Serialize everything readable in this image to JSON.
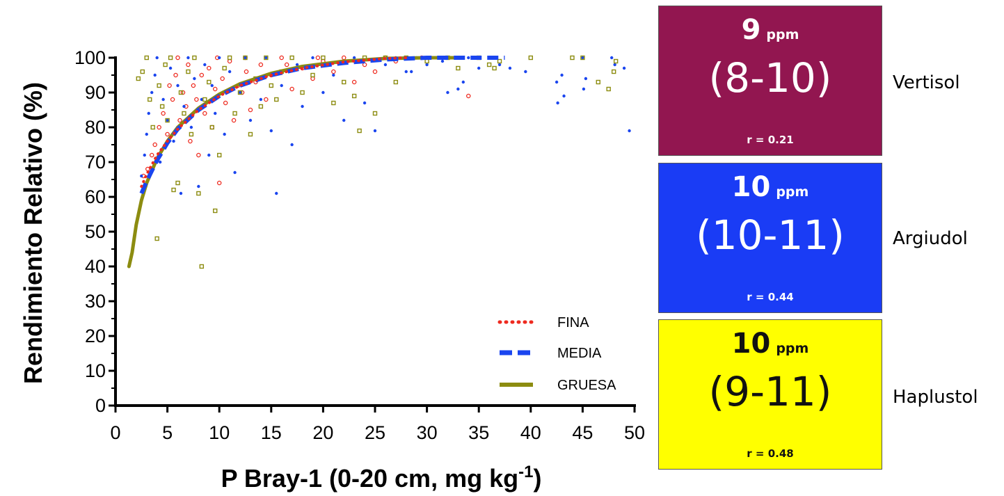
{
  "colors": {
    "fina": "#ee2a1f",
    "media": "#1a45ef",
    "gruesa": "#8c8c10"
  },
  "chart_data": {
    "type": "scatter",
    "title": "",
    "xlabel": "P Bray-1 (0-20 cm, mg kg",
    "xlabel_superscript": "-1",
    "xlabel_suffix": ")",
    "ylabel": "Rendimiento Relativo (%)",
    "xlim": [
      0,
      50
    ],
    "ylim": [
      0,
      100
    ],
    "x_ticks": [
      "0",
      "5",
      "10",
      "15",
      "20",
      "25",
      "30",
      "35",
      "40",
      "45",
      "50"
    ],
    "y_ticks": [
      "0",
      "10",
      "20",
      "30",
      "40",
      "50",
      "60",
      "70",
      "80",
      "90",
      "100"
    ],
    "legend": {
      "placement": "bottom-right",
      "entries": [
        "FINA",
        "MEDIA",
        "GRUESA"
      ]
    },
    "series": [
      {
        "name": "FINA",
        "marker": "open-circle",
        "line_style": "dotted",
        "curve": [
          [
            2.5,
            63
          ],
          [
            3,
            66.5
          ],
          [
            4,
            72
          ],
          [
            5,
            76
          ],
          [
            6,
            79.5
          ],
          [
            8,
            85
          ],
          [
            10,
            89
          ],
          [
            12,
            92
          ],
          [
            15,
            95
          ],
          [
            18,
            97
          ],
          [
            22,
            98.8
          ],
          [
            26,
            99.8
          ],
          [
            28,
            100
          ]
        ],
        "points": [
          [
            2.7,
            66
          ],
          [
            3.1,
            68
          ],
          [
            3.5,
            72
          ],
          [
            3.8,
            75
          ],
          [
            4.2,
            80
          ],
          [
            4.6,
            84
          ],
          [
            5,
            78
          ],
          [
            5.2,
            92
          ],
          [
            5.5,
            88
          ],
          [
            5.8,
            95
          ],
          [
            6,
            100
          ],
          [
            6.2,
            82
          ],
          [
            6.5,
            90
          ],
          [
            6.8,
            86
          ],
          [
            7,
            98
          ],
          [
            7.2,
            76
          ],
          [
            7.5,
            92
          ],
          [
            7.8,
            88
          ],
          [
            8,
            72
          ],
          [
            8.3,
            95
          ],
          [
            8.6,
            84
          ],
          [
            9,
            97
          ],
          [
            9.3,
            80
          ],
          [
            9.6,
            91
          ],
          [
            10,
            64
          ],
          [
            10.3,
            94
          ],
          [
            10.6,
            87
          ],
          [
            11,
            99
          ],
          [
            11.4,
            82
          ],
          [
            11.8,
            92
          ],
          [
            12.2,
            90
          ],
          [
            12.6,
            96
          ],
          [
            13,
            85
          ],
          [
            13.5,
            93
          ],
          [
            14,
            98
          ],
          [
            14.5,
            88
          ],
          [
            15,
            95
          ],
          [
            16,
            100
          ],
          [
            17,
            91
          ],
          [
            18,
            97
          ],
          [
            19,
            94
          ],
          [
            20,
            99
          ],
          [
            21,
            96
          ],
          [
            22,
            100
          ],
          [
            23,
            93
          ],
          [
            24,
            98
          ],
          [
            25,
            96
          ],
          [
            26,
            100
          ],
          [
            27,
            99
          ],
          [
            29.5,
            100
          ],
          [
            34,
            89
          ],
          [
            16.5,
            98
          ],
          [
            19.5,
            100
          ],
          [
            12.5,
            100
          ],
          [
            9.8,
            100
          ]
        ]
      },
      {
        "name": "MEDIA",
        "marker": "dot",
        "line_style": "dashed",
        "curve": [
          [
            2.5,
            61
          ],
          [
            3,
            64.5
          ],
          [
            4,
            70.5
          ],
          [
            5,
            75.5
          ],
          [
            6,
            79.5
          ],
          [
            8,
            85
          ],
          [
            10,
            89
          ],
          [
            12,
            92
          ],
          [
            15,
            95
          ],
          [
            18,
            97
          ],
          [
            22,
            98.5
          ],
          [
            26,
            99.5
          ],
          [
            30,
            100
          ],
          [
            37.5,
            100
          ]
        ],
        "points": [
          [
            2.5,
            66
          ],
          [
            2.8,
            72
          ],
          [
            3,
            78
          ],
          [
            3.2,
            84
          ],
          [
            3.5,
            90
          ],
          [
            3.8,
            95
          ],
          [
            4,
            100
          ],
          [
            4.3,
            70
          ],
          [
            4.6,
            88
          ],
          [
            5,
            82
          ],
          [
            5.3,
            97
          ],
          [
            5.6,
            76
          ],
          [
            6,
            92
          ],
          [
            6.3,
            61
          ],
          [
            6.6,
            86
          ],
          [
            7,
            100
          ],
          [
            7.3,
            80
          ],
          [
            7.6,
            94
          ],
          [
            8,
            63
          ],
          [
            8.3,
            88
          ],
          [
            8.6,
            98
          ],
          [
            9,
            72
          ],
          [
            9.3,
            92
          ],
          [
            9.6,
            84
          ],
          [
            10,
            100
          ],
          [
            10.5,
            78
          ],
          [
            11,
            96
          ],
          [
            11.5,
            67
          ],
          [
            12,
            90
          ],
          [
            12.5,
            100
          ],
          [
            13,
            82
          ],
          [
            13.5,
            94
          ],
          [
            14,
            88
          ],
          [
            14.5,
            100
          ],
          [
            15,
            79
          ],
          [
            15.5,
            61
          ],
          [
            16,
            92
          ],
          [
            17,
            75
          ],
          [
            17.5,
            98
          ],
          [
            18,
            86
          ],
          [
            19,
            100
          ],
          [
            20,
            90
          ],
          [
            21,
            95
          ],
          [
            22,
            82
          ],
          [
            23,
            100
          ],
          [
            24,
            87
          ],
          [
            25,
            79
          ],
          [
            26,
            98
          ],
          [
            27,
            100
          ],
          [
            28,
            96
          ],
          [
            29,
            100
          ],
          [
            30,
            98
          ],
          [
            31,
            100
          ],
          [
            32,
            90
          ],
          [
            33,
            91
          ],
          [
            34,
            100
          ],
          [
            35,
            97
          ],
          [
            36,
            100
          ],
          [
            37,
            98
          ],
          [
            38,
            97
          ],
          [
            39.5,
            96
          ],
          [
            42.5,
            93
          ],
          [
            42.6,
            87
          ],
          [
            43,
            95
          ],
          [
            43.2,
            89
          ],
          [
            45,
            100
          ],
          [
            45.1,
            91
          ],
          [
            45.3,
            94
          ],
          [
            47.8,
            100
          ],
          [
            48.1,
            98
          ],
          [
            49,
            97
          ],
          [
            49.5,
            79
          ],
          [
            33.5,
            93
          ],
          [
            31.5,
            99
          ],
          [
            28.5,
            96
          ]
        ]
      },
      {
        "name": "GRUESA",
        "marker": "open-square",
        "line_style": "solid",
        "curve": [
          [
            1.3,
            40
          ],
          [
            1.6,
            44
          ],
          [
            2,
            52
          ],
          [
            2.5,
            59
          ],
          [
            3,
            64
          ],
          [
            4,
            71
          ],
          [
            5,
            76
          ],
          [
            6,
            80
          ],
          [
            8,
            85.5
          ],
          [
            10,
            89.5
          ],
          [
            12,
            92.5
          ],
          [
            15,
            95.5
          ],
          [
            18,
            97.5
          ],
          [
            22,
            99
          ],
          [
            26,
            99.8
          ],
          [
            30,
            100
          ],
          [
            33,
            100
          ]
        ],
        "points": [
          [
            2.2,
            94
          ],
          [
            2.6,
            96
          ],
          [
            3,
            100
          ],
          [
            3.3,
            88
          ],
          [
            3.6,
            80
          ],
          [
            4,
            48
          ],
          [
            4.2,
            92
          ],
          [
            4.5,
            86
          ],
          [
            4.8,
            98
          ],
          [
            5,
            82
          ],
          [
            5.3,
            100
          ],
          [
            5.6,
            62
          ],
          [
            6,
            64
          ],
          [
            6.3,
            90
          ],
          [
            6.6,
            84
          ],
          [
            7,
            96
          ],
          [
            7.3,
            78
          ],
          [
            7.6,
            100
          ],
          [
            8,
            61
          ],
          [
            8.3,
            40
          ],
          [
            8.6,
            88
          ],
          [
            9,
            93
          ],
          [
            9.3,
            80
          ],
          [
            9.6,
            56
          ],
          [
            10,
            72
          ],
          [
            10.5,
            97
          ],
          [
            11,
            100
          ],
          [
            11.5,
            84
          ],
          [
            12,
            90
          ],
          [
            12.5,
            100
          ],
          [
            13,
            78
          ],
          [
            13.5,
            94
          ],
          [
            14,
            86
          ],
          [
            14.5,
            100
          ],
          [
            15,
            92
          ],
          [
            15.5,
            88
          ],
          [
            16,
            96
          ],
          [
            17,
            100
          ],
          [
            18,
            90
          ],
          [
            19,
            95
          ],
          [
            20,
            100
          ],
          [
            21,
            87
          ],
          [
            22,
            93
          ],
          [
            23,
            89
          ],
          [
            23.5,
            79
          ],
          [
            24,
            100
          ],
          [
            25,
            84
          ],
          [
            26,
            100
          ],
          [
            27,
            93
          ],
          [
            28,
            100
          ],
          [
            30,
            99
          ],
          [
            32,
            100
          ],
          [
            33,
            97
          ],
          [
            35,
            100
          ],
          [
            36,
            98
          ],
          [
            37,
            99
          ],
          [
            40,
            100
          ],
          [
            44,
            100
          ],
          [
            45,
            100
          ],
          [
            46.5,
            93
          ],
          [
            47.5,
            91
          ],
          [
            48,
            96
          ],
          [
            48.2,
            99
          ],
          [
            36.5,
            97
          ]
        ]
      }
    ]
  },
  "panels": [
    {
      "ppm": "9",
      "unit": "ppm",
      "range": "(8-10)",
      "r": "r = 0.21",
      "label": "Vertisol",
      "bg": "#921650",
      "fg": "#ffffff"
    },
    {
      "ppm": "10",
      "unit": "ppm",
      "range": "(10-11)",
      "r": "r = 0.44",
      "label": "Argiudol",
      "bg": "#1a3cf5",
      "fg": "#ffffff"
    },
    {
      "ppm": "10",
      "unit": "ppm",
      "range": "(9-11)",
      "r": "r = 0.48",
      "label": "Haplustol",
      "bg": "#ffff00",
      "fg": "#111111"
    }
  ]
}
